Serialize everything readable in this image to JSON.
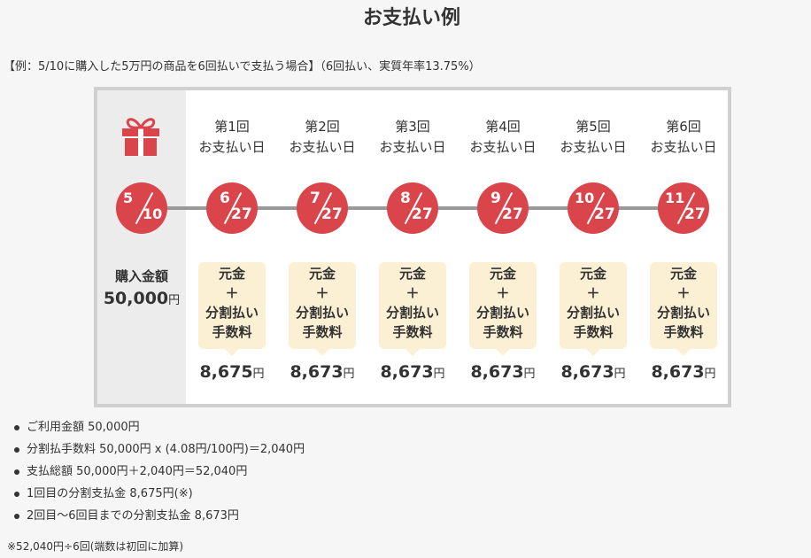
{
  "title": "お支払い例",
  "example": "【例：5/10に購入した5万円の商品を6回払いで支払う場合】（6回払い、実質年率13.75%）",
  "colors": {
    "accent": "#d9454b",
    "box": "#fbf0d4",
    "panel_border": "#d0d0d0"
  },
  "start": {
    "month": "5",
    "day": "10",
    "purchase_label": "購入金額",
    "amount": "50,000",
    "yen": "円"
  },
  "payments": [
    {
      "head1": "第1回",
      "head2": "お支払い日",
      "month": "6",
      "day": "27",
      "box": [
        "元金",
        "＋",
        "分割払い",
        "手数料"
      ],
      "amount": "8,675",
      "yen": "円"
    },
    {
      "head1": "第2回",
      "head2": "お支払い日",
      "month": "7",
      "day": "27",
      "box": [
        "元金",
        "＋",
        "分割払い",
        "手数料"
      ],
      "amount": "8,673",
      "yen": "円"
    },
    {
      "head1": "第3回",
      "head2": "お支払い日",
      "month": "8",
      "day": "27",
      "box": [
        "元金",
        "＋",
        "分割払い",
        "手数料"
      ],
      "amount": "8,673",
      "yen": "円"
    },
    {
      "head1": "第4回",
      "head2": "お支払い日",
      "month": "9",
      "day": "27",
      "box": [
        "元金",
        "＋",
        "分割払い",
        "手数料"
      ],
      "amount": "8,673",
      "yen": "円"
    },
    {
      "head1": "第5回",
      "head2": "お支払い日",
      "month": "10",
      "day": "27",
      "box": [
        "元金",
        "＋",
        "分割払い",
        "手数料"
      ],
      "amount": "8,673",
      "yen": "円"
    },
    {
      "head1": "第6回",
      "head2": "お支払い日",
      "month": "11",
      "day": "27",
      "box": [
        "元金",
        "＋",
        "分割払い",
        "手数料"
      ],
      "amount": "8,673",
      "yen": "円"
    }
  ],
  "notes": [
    "ご利用金額 50,000円",
    "分割払手数料 50,000円 x (4.08円/100円)＝2,040円",
    "支払総額 50,000円＋2,040円＝52,040円",
    "1回目の分割支払金 8,675円(※)",
    "2回目～6回目までの分割支払金 8,673円"
  ],
  "footnote": "※52,040円÷6回(端数は初回に加算)",
  "gift_icon": "gift-icon"
}
